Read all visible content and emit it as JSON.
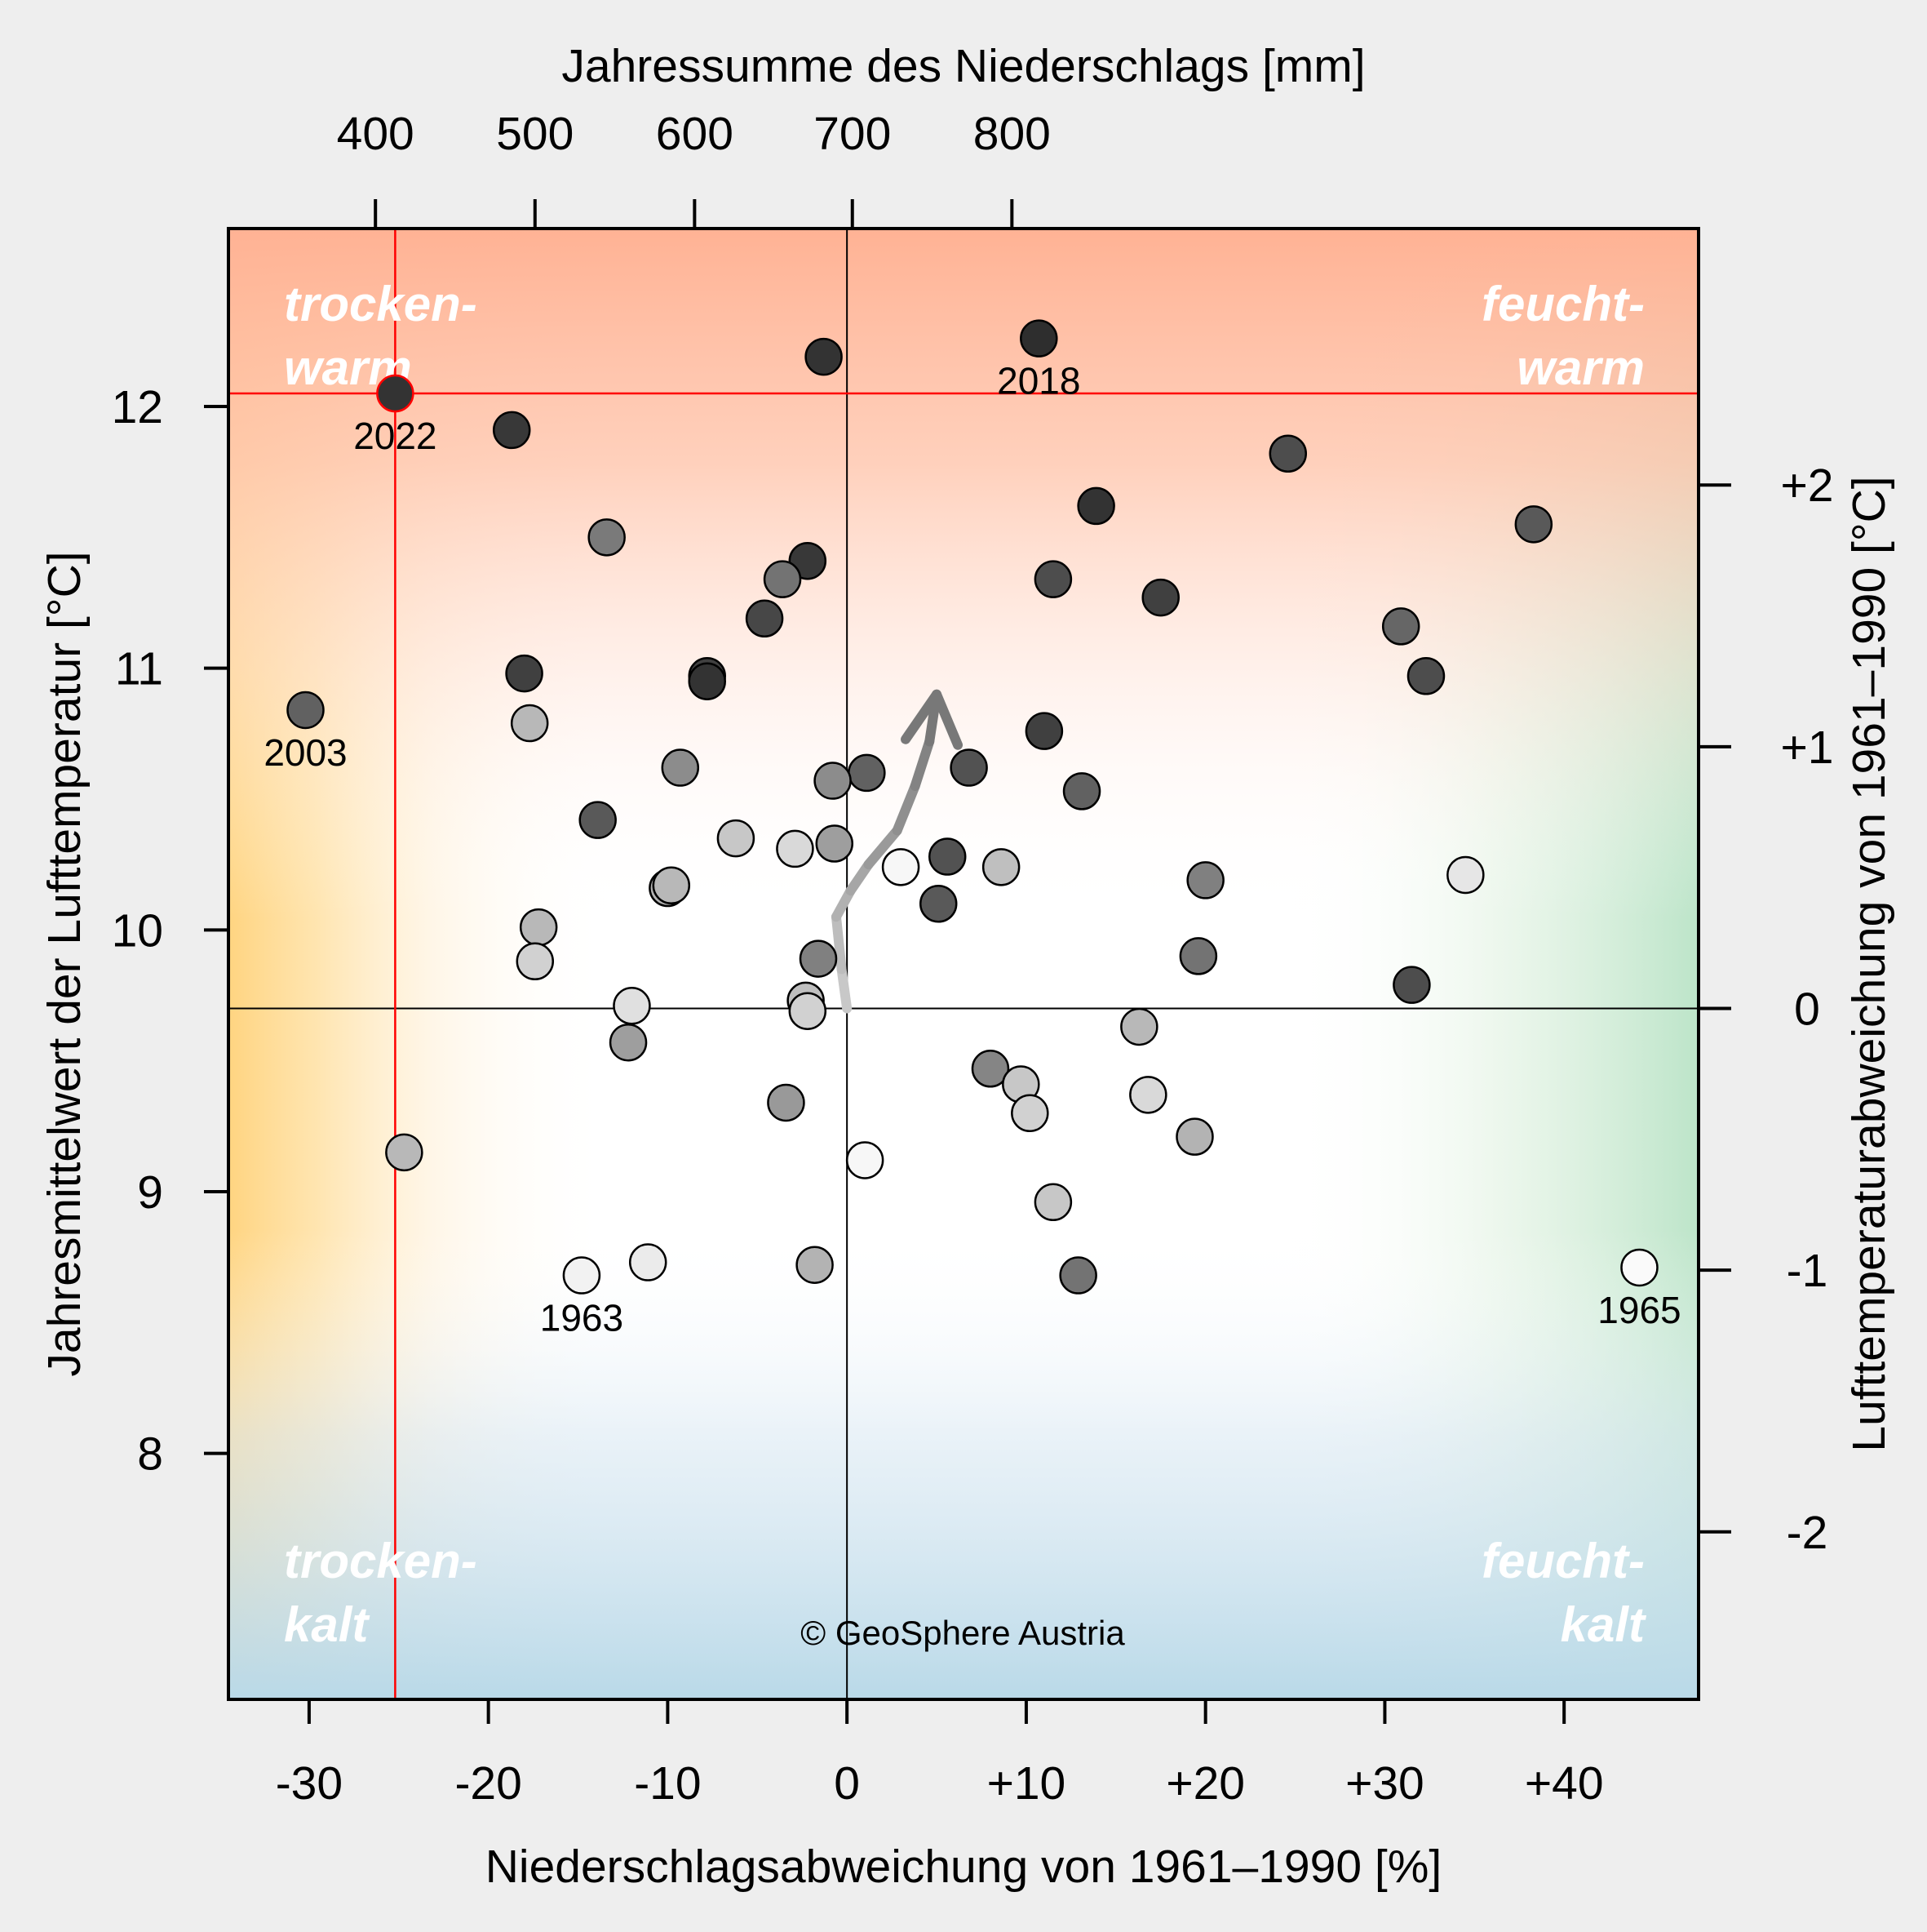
{
  "chart_data": {
    "type": "scatter",
    "title": "",
    "xlabel_bottom": "Niederschlagsabweichung von 1961–1990 [%]",
    "xlabel_top": "Jahressumme des Niederschlags [mm]",
    "ylabel_left": "Jahresmittelwert der Lufttemperatur [°C]",
    "ylabel_right": "Lufttemperaturabweichung von 1961–1990 [°C]",
    "xlim": [
      -34.5,
      47.5
    ],
    "ylim": [
      7.06,
      12.68
    ],
    "reference": {
      "precip_pct": 0,
      "temp_c": 9.7
    },
    "x_ticks_bottom": [
      {
        "value": -30,
        "label": "-30"
      },
      {
        "value": -20,
        "label": "-20"
      },
      {
        "value": -10,
        "label": "-10"
      },
      {
        "value": 0,
        "label": "0"
      },
      {
        "value": 10,
        "label": "+10"
      },
      {
        "value": 20,
        "label": "+20"
      },
      {
        "value": 30,
        "label": "+30"
      },
      {
        "value": 40,
        "label": "+40"
      }
    ],
    "x_ticks_top": [
      {
        "value": -26.3,
        "label": "400"
      },
      {
        "value": -17.4,
        "label": "500"
      },
      {
        "value": -8.5,
        "label": "600"
      },
      {
        "value": 0.3,
        "label": "700"
      },
      {
        "value": 9.2,
        "label": "800"
      }
    ],
    "y_ticks_left": [
      {
        "value": 8,
        "label": "8"
      },
      {
        "value": 9,
        "label": "9"
      },
      {
        "value": 10,
        "label": "10"
      },
      {
        "value": 11,
        "label": "11"
      },
      {
        "value": 12,
        "label": "12"
      }
    ],
    "y_ticks_right": [
      {
        "value": 7.7,
        "label": "-2"
      },
      {
        "value": 8.7,
        "label": "-1"
      },
      {
        "value": 9.7,
        "label": "0"
      },
      {
        "value": 10.7,
        "label": "+1"
      },
      {
        "value": 11.7,
        "label": "+2"
      }
    ],
    "quadrant_labels": {
      "top_left": [
        "trocken-",
        "warm"
      ],
      "top_right": [
        "feucht-",
        "warm"
      ],
      "bottom_left": [
        "trocken-",
        "kalt"
      ],
      "bottom_right": [
        "feucht-",
        "kalt"
      ]
    },
    "copyright": "© GeoSphere Austria",
    "highlight": {
      "year": "2022",
      "x": -25.2,
      "y": 12.05,
      "color": "#ff0000"
    },
    "trend_arrow": [
      {
        "x": 0.0,
        "y": 9.7
      },
      {
        "x": -0.3,
        "y": 9.85
      },
      {
        "x": -0.6,
        "y": 10.05
      },
      {
        "x": 0.2,
        "y": 10.15
      },
      {
        "x": 1.2,
        "y": 10.25
      },
      {
        "x": 2.8,
        "y": 10.38
      },
      {
        "x": 3.8,
        "y": 10.55
      },
      {
        "x": 4.6,
        "y": 10.72
      },
      {
        "x": 5.0,
        "y": 10.9
      }
    ],
    "points": [
      {
        "x": -25.2,
        "y": 12.05,
        "gray": 0.2,
        "label": "2022"
      },
      {
        "x": -30.2,
        "y": 10.84,
        "gray": 0.38,
        "label": "2003"
      },
      {
        "x": 10.7,
        "y": 12.26,
        "gray": 0.18,
        "label": "2018"
      },
      {
        "x": -14.8,
        "y": 8.68,
        "gray": 0.95,
        "label": "1963"
      },
      {
        "x": 44.2,
        "y": 8.71,
        "gray": 0.98,
        "label": "1965"
      },
      {
        "x": -1.3,
        "y": 12.19,
        "gray": 0.2,
        "label": ""
      },
      {
        "x": -18.7,
        "y": 11.91,
        "gray": 0.22,
        "label": ""
      },
      {
        "x": 24.6,
        "y": 11.82,
        "gray": 0.3,
        "label": ""
      },
      {
        "x": 13.9,
        "y": 11.62,
        "gray": 0.2,
        "label": ""
      },
      {
        "x": 38.3,
        "y": 11.55,
        "gray": 0.35,
        "label": ""
      },
      {
        "x": -13.4,
        "y": 11.5,
        "gray": 0.48,
        "label": ""
      },
      {
        "x": -2.2,
        "y": 11.41,
        "gray": 0.22,
        "label": ""
      },
      {
        "x": -3.6,
        "y": 11.34,
        "gray": 0.45,
        "label": ""
      },
      {
        "x": 11.5,
        "y": 11.34,
        "gray": 0.3,
        "label": ""
      },
      {
        "x": 17.5,
        "y": 11.27,
        "gray": 0.25,
        "label": ""
      },
      {
        "x": -4.6,
        "y": 11.19,
        "gray": 0.28,
        "label": ""
      },
      {
        "x": 30.9,
        "y": 11.16,
        "gray": 0.4,
        "label": ""
      },
      {
        "x": -18.0,
        "y": 10.98,
        "gray": 0.25,
        "label": ""
      },
      {
        "x": -7.8,
        "y": 10.97,
        "gray": 0.25,
        "label": ""
      },
      {
        "x": -7.8,
        "y": 10.95,
        "gray": 0.2,
        "label": ""
      },
      {
        "x": 32.3,
        "y": 10.97,
        "gray": 0.3,
        "label": ""
      },
      {
        "x": -17.7,
        "y": 10.79,
        "gray": 0.72,
        "label": ""
      },
      {
        "x": 11.0,
        "y": 10.76,
        "gray": 0.25,
        "label": ""
      },
      {
        "x": -9.3,
        "y": 10.62,
        "gray": 0.55,
        "label": ""
      },
      {
        "x": 6.8,
        "y": 10.62,
        "gray": 0.32,
        "label": ""
      },
      {
        "x": 1.1,
        "y": 10.6,
        "gray": 0.38,
        "label": ""
      },
      {
        "x": -0.8,
        "y": 10.57,
        "gray": 0.55,
        "label": ""
      },
      {
        "x": 13.1,
        "y": 10.53,
        "gray": 0.38,
        "label": ""
      },
      {
        "x": -13.9,
        "y": 10.42,
        "gray": 0.35,
        "label": ""
      },
      {
        "x": -6.2,
        "y": 10.35,
        "gray": 0.78,
        "label": ""
      },
      {
        "x": -0.7,
        "y": 10.33,
        "gray": 0.62,
        "label": ""
      },
      {
        "x": -2.9,
        "y": 10.31,
        "gray": 0.85,
        "label": ""
      },
      {
        "x": 5.6,
        "y": 10.28,
        "gray": 0.32,
        "label": ""
      },
      {
        "x": 3.0,
        "y": 10.24,
        "gray": 0.97,
        "label": ""
      },
      {
        "x": 8.6,
        "y": 10.24,
        "gray": 0.75,
        "label": ""
      },
      {
        "x": 34.5,
        "y": 10.21,
        "gray": 0.9,
        "label": ""
      },
      {
        "x": 20.0,
        "y": 10.19,
        "gray": 0.5,
        "label": ""
      },
      {
        "x": -10.0,
        "y": 10.16,
        "gray": 0.7,
        "label": ""
      },
      {
        "x": -9.8,
        "y": 10.17,
        "gray": 0.72,
        "label": ""
      },
      {
        "x": 5.1,
        "y": 10.1,
        "gray": 0.35,
        "label": ""
      },
      {
        "x": -17.2,
        "y": 10.01,
        "gray": 0.72,
        "label": ""
      },
      {
        "x": 19.6,
        "y": 9.9,
        "gray": 0.45,
        "label": ""
      },
      {
        "x": -1.6,
        "y": 9.89,
        "gray": 0.5,
        "label": ""
      },
      {
        "x": -17.4,
        "y": 9.88,
        "gray": 0.82,
        "label": ""
      },
      {
        "x": 31.5,
        "y": 9.79,
        "gray": 0.3,
        "label": ""
      },
      {
        "x": -2.3,
        "y": 9.73,
        "gray": 0.75,
        "label": ""
      },
      {
        "x": -12.0,
        "y": 9.71,
        "gray": 0.88,
        "label": ""
      },
      {
        "x": -2.2,
        "y": 9.69,
        "gray": 0.82,
        "label": ""
      },
      {
        "x": 16.3,
        "y": 9.63,
        "gray": 0.72,
        "label": ""
      },
      {
        "x": -12.2,
        "y": 9.57,
        "gray": 0.62,
        "label": ""
      },
      {
        "x": 8.0,
        "y": 9.47,
        "gray": 0.52,
        "label": ""
      },
      {
        "x": 9.7,
        "y": 9.41,
        "gray": 0.78,
        "label": ""
      },
      {
        "x": 16.8,
        "y": 9.37,
        "gray": 0.85,
        "label": ""
      },
      {
        "x": -3.4,
        "y": 9.34,
        "gray": 0.6,
        "label": ""
      },
      {
        "x": 10.2,
        "y": 9.3,
        "gray": 0.82,
        "label": ""
      },
      {
        "x": 19.4,
        "y": 9.21,
        "gray": 0.7,
        "label": ""
      },
      {
        "x": -24.7,
        "y": 9.15,
        "gray": 0.72,
        "label": ""
      },
      {
        "x": 1.0,
        "y": 9.12,
        "gray": 0.97,
        "label": ""
      },
      {
        "x": 11.5,
        "y": 8.96,
        "gray": 0.78,
        "label": ""
      },
      {
        "x": -11.1,
        "y": 8.73,
        "gray": 0.92,
        "label": ""
      },
      {
        "x": -1.8,
        "y": 8.72,
        "gray": 0.7,
        "label": ""
      },
      {
        "x": 12.9,
        "y": 8.68,
        "gray": 0.45,
        "label": ""
      }
    ]
  }
}
